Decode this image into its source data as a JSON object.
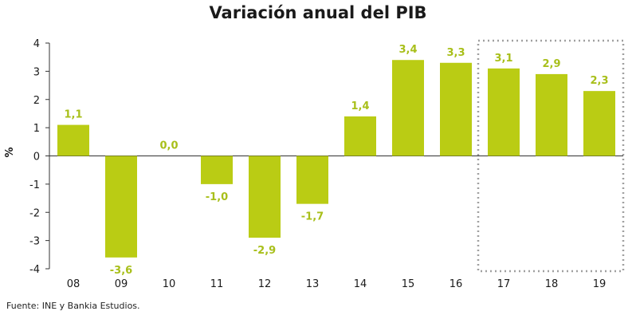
{
  "chart_data": {
    "type": "bar",
    "title": "Variación anual del PIB",
    "ylabel": "%",
    "xlabel": "",
    "categories": [
      "08",
      "09",
      "10",
      "11",
      "12",
      "13",
      "14",
      "15",
      "16",
      "17",
      "18",
      "19"
    ],
    "values": [
      1.1,
      -3.6,
      0.0,
      -1.0,
      -2.9,
      -1.7,
      1.4,
      3.4,
      3.3,
      3.1,
      2.9,
      2.3
    ],
    "data_labels": [
      "1,1",
      "-3,6",
      "0,0",
      "-1,0",
      "-2,9",
      "-1,7",
      "1,4",
      "3,4",
      "3,3",
      "3,1",
      "2,9",
      "2,3"
    ],
    "ylim": [
      -4,
      4
    ],
    "yticks": [
      4,
      3,
      2,
      1,
      0,
      -1,
      -2,
      -3,
      -4
    ],
    "ytick_labels": [
      "4",
      "3",
      "2",
      "1",
      "0",
      "-1",
      "-2",
      "-3",
      "-4"
    ],
    "forecast_categories": [
      "17",
      "18",
      "19"
    ],
    "grid": false,
    "legend": "none",
    "bar_color": "#bacc14",
    "label_color": "#a8bf1a",
    "forecast_box_color": "#a0a0a0"
  },
  "source": "Fuente: INE y Bankia Estudios."
}
